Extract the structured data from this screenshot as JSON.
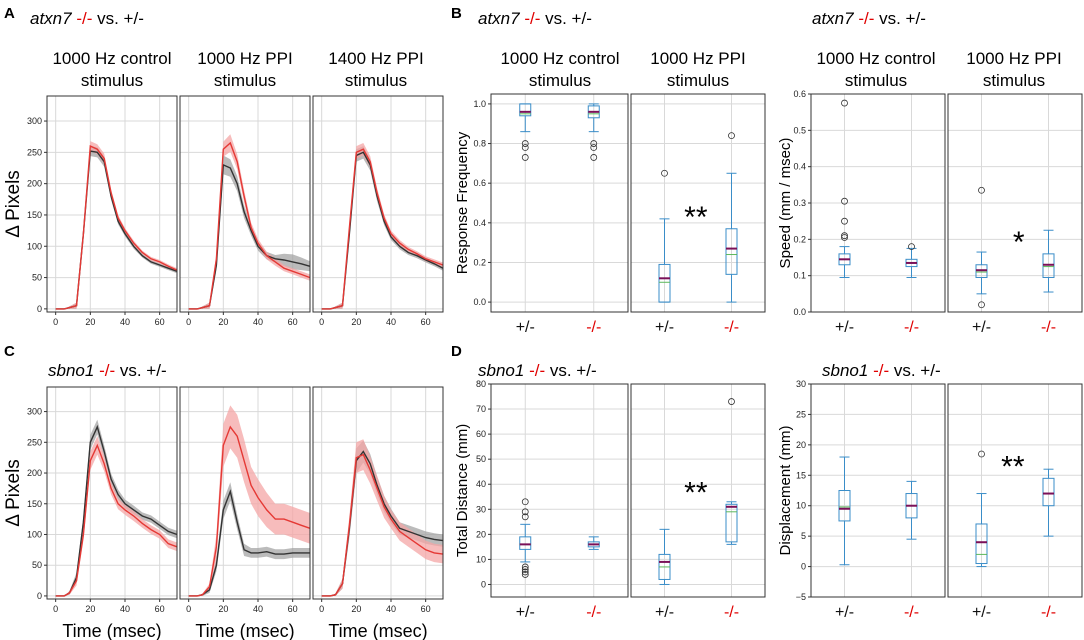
{
  "panel_labels": {
    "A": "A",
    "B": "B",
    "C": "C",
    "D": "D"
  },
  "titles": {
    "A": {
      "gene": "atxn7",
      "mut": "-/-",
      "rest": "vs. +/-"
    },
    "B1": {
      "gene": "atxn7",
      "mut": "-/-",
      "rest": "vs. +/-"
    },
    "B2": {
      "gene": "atxn7",
      "mut": "-/-",
      "rest": "vs. +/-"
    },
    "C": {
      "gene": "sbno1",
      "mut": "-/-",
      "rest": "vs. +/-"
    },
    "D1": {
      "gene": "sbno1",
      "mut": "-/-",
      "rest": "vs. +/-"
    },
    "D2": {
      "gene": "sbno1",
      "mut": "-/-",
      "rest": "vs. +/-"
    }
  },
  "col_titles": {
    "a1": [
      "1000 Hz control",
      "stimulus"
    ],
    "a2": [
      "1000 Hz PPI",
      "stimulus"
    ],
    "a3": [
      "1400 Hz PPI",
      "stimulus"
    ],
    "b1": [
      "1000 Hz control",
      "stimulus"
    ],
    "b2": [
      "1000 Hz PPI",
      "stimulus"
    ],
    "b3": [
      "1000 Hz control",
      "stimulus"
    ],
    "b4": [
      "1000 Hz PPI",
      "stimulus"
    ]
  },
  "colors": {
    "mut": "#e53935",
    "mut_band": "#f4a6a6",
    "het": "#333333",
    "het_band": "#9e9e9e",
    "box": "#3a8dc8",
    "median": "#7a1058",
    "mean": "#5cb85c",
    "label_red": "#e00000"
  },
  "chart_data": [
    {
      "id": "A",
      "type": "line",
      "xlabel": "",
      "ylabel": "Δ Pixels",
      "xlim": [
        -5,
        70
      ],
      "ylim": [
        -5,
        340
      ],
      "xticks": [
        "0",
        "20",
        "40",
        "60"
      ],
      "yticks": [
        "0",
        "50",
        "100",
        "150",
        "200",
        "250",
        "300"
      ],
      "x": [
        0,
        5,
        8,
        12,
        16,
        20,
        24,
        28,
        32,
        36,
        40,
        45,
        50,
        55,
        60,
        65,
        70
      ],
      "panels": [
        {
          "name": "1000 Hz control stimulus",
          "series": [
            {
              "name": "+/-",
              "values": [
                0,
                0,
                2,
                5,
                120,
                252,
                250,
                235,
                180,
                140,
                120,
                100,
                85,
                75,
                70,
                65,
                60
              ],
              "band": [
                0,
                0,
                2,
                5,
                5,
                8,
                8,
                8,
                6,
                5,
                4,
                4,
                3,
                3,
                3,
                3,
                3
              ]
            },
            {
              "name": "-/-",
              "values": [
                0,
                0,
                2,
                5,
                120,
                260,
                255,
                240,
                185,
                145,
                125,
                105,
                90,
                80,
                75,
                68,
                62
              ],
              "band": [
                0,
                0,
                2,
                5,
                5,
                8,
                8,
                8,
                6,
                5,
                4,
                4,
                3,
                3,
                3,
                3,
                3
              ]
            }
          ]
        },
        {
          "name": "1000 Hz PPI stimulus",
          "series": [
            {
              "name": "+/-",
              "values": [
                0,
                0,
                2,
                5,
                70,
                230,
                225,
                200,
                155,
                125,
                100,
                85,
                80,
                78,
                75,
                72,
                68
              ],
              "band": [
                0,
                0,
                2,
                5,
                8,
                15,
                14,
                12,
                10,
                8,
                7,
                6,
                6,
                10,
                12,
                10,
                8
              ]
            },
            {
              "name": "-/-",
              "values": [
                0,
                0,
                2,
                5,
                80,
                255,
                265,
                235,
                180,
                130,
                105,
                85,
                75,
                65,
                60,
                55,
                50
              ],
              "band": [
                0,
                0,
                2,
                5,
                8,
                12,
                14,
                12,
                10,
                8,
                7,
                6,
                6,
                5,
                5,
                5,
                5
              ]
            }
          ]
        },
        {
          "name": "1400 Hz PPI stimulus",
          "series": [
            {
              "name": "+/-",
              "values": [
                0,
                0,
                2,
                5,
                120,
                245,
                250,
                230,
                180,
                140,
                115,
                100,
                90,
                85,
                78,
                72,
                65
              ],
              "band": [
                0,
                0,
                2,
                5,
                8,
                10,
                10,
                9,
                8,
                6,
                5,
                5,
                4,
                4,
                4,
                4,
                4
              ]
            },
            {
              "name": "-/-",
              "values": [
                0,
                0,
                2,
                5,
                130,
                250,
                255,
                235,
                185,
                145,
                120,
                105,
                95,
                88,
                80,
                75,
                70
              ],
              "band": [
                0,
                0,
                2,
                5,
                8,
                10,
                10,
                9,
                8,
                6,
                5,
                5,
                4,
                4,
                4,
                4,
                4
              ]
            }
          ]
        }
      ]
    },
    {
      "id": "C",
      "type": "line",
      "xlabel": "Time (msec)",
      "ylabel": "Δ Pixels",
      "xlim": [
        -5,
        70
      ],
      "ylim": [
        -5,
        340
      ],
      "xticks": [
        "0",
        "20",
        "40",
        "60"
      ],
      "yticks": [
        "0",
        "50",
        "100",
        "150",
        "200",
        "250",
        "300"
      ],
      "x": [
        0,
        5,
        8,
        12,
        16,
        20,
        24,
        28,
        32,
        36,
        40,
        45,
        50,
        55,
        60,
        65,
        70
      ],
      "panels": [
        {
          "name": "1000 Hz control stimulus",
          "series": [
            {
              "name": "+/-",
              "values": [
                0,
                0,
                5,
                30,
                120,
                250,
                275,
                235,
                190,
                165,
                150,
                140,
                130,
                125,
                115,
                105,
                100
              ],
              "band": [
                0,
                0,
                3,
                8,
                10,
                12,
                12,
                10,
                9,
                8,
                7,
                7,
                6,
                6,
                6,
                6,
                6
              ]
            },
            {
              "name": "-/-",
              "values": [
                0,
                0,
                5,
                25,
                100,
                220,
                245,
                215,
                175,
                150,
                140,
                130,
                118,
                108,
                100,
                85,
                80
              ],
              "band": [
                0,
                0,
                3,
                8,
                10,
                15,
                15,
                12,
                10,
                9,
                8,
                8,
                7,
                7,
                7,
                7,
                7
              ]
            }
          ]
        },
        {
          "name": "1000 Hz PPI stimulus",
          "series": [
            {
              "name": "+/-",
              "values": [
                0,
                0,
                2,
                10,
                50,
                140,
                170,
                120,
                75,
                70,
                70,
                72,
                68,
                68,
                70,
                70,
                70
              ],
              "band": [
                0,
                0,
                2,
                5,
                10,
                15,
                15,
                12,
                10,
                8,
                8,
                8,
                8,
                8,
                8,
                8,
                8
              ]
            },
            {
              "name": "-/-",
              "values": [
                0,
                0,
                2,
                15,
                80,
                245,
                275,
                260,
                220,
                180,
                160,
                140,
                125,
                125,
                120,
                115,
                110
              ],
              "band": [
                0,
                0,
                2,
                5,
                20,
                35,
                35,
                35,
                35,
                30,
                30,
                28,
                25,
                25,
                25,
                25,
                25
              ]
            }
          ]
        },
        {
          "name": "1400 Hz PPI stimulus",
          "series": [
            {
              "name": "+/-",
              "values": [
                0,
                0,
                2,
                20,
                110,
                220,
                235,
                215,
                180,
                150,
                130,
                110,
                105,
                100,
                95,
                92,
                90
              ],
              "band": [
                0,
                0,
                2,
                8,
                15,
                20,
                18,
                16,
                15,
                13,
                12,
                10,
                10,
                10,
                10,
                10,
                10
              ]
            },
            {
              "name": "-/-",
              "values": [
                0,
                0,
                2,
                20,
                115,
                225,
                230,
                205,
                175,
                145,
                125,
                105,
                95,
                85,
                75,
                70,
                68
              ],
              "band": [
                0,
                0,
                2,
                8,
                15,
                25,
                25,
                22,
                20,
                18,
                15,
                15,
                15,
                15,
                15,
                15,
                15
              ]
            }
          ]
        }
      ]
    },
    {
      "id": "B-left",
      "type": "box",
      "ylabel": "Response Frequency",
      "ylim": [
        -0.05,
        1.05
      ],
      "yticks": [
        "0.0",
        "0.2",
        "0.4",
        "0.6",
        "0.8",
        "1.0"
      ],
      "categories": [
        "+/-",
        "-/-",
        "+/-",
        "-/-"
      ],
      "sig": "**",
      "sig_at": 3,
      "boxes": [
        {
          "q1": 0.94,
          "median": 0.96,
          "q3": 1.0,
          "wlow": 0.86,
          "whigh": 1.0,
          "mean": 0.95,
          "outliers": [
            0.8,
            0.78,
            0.73
          ]
        },
        {
          "q1": 0.93,
          "median": 0.96,
          "q3": 0.99,
          "wlow": 0.86,
          "whigh": 1.0,
          "mean": 0.95,
          "outliers": [
            0.8,
            0.78,
            0.73
          ]
        },
        {
          "q1": 0.0,
          "median": 0.12,
          "q3": 0.19,
          "wlow": 0.0,
          "whigh": 0.42,
          "mean": 0.1,
          "outliers": [
            0.65
          ]
        },
        {
          "q1": 0.14,
          "median": 0.27,
          "q3": 0.37,
          "wlow": 0.0,
          "whigh": 0.65,
          "mean": 0.24,
          "outliers": [
            0.84
          ]
        }
      ]
    },
    {
      "id": "B-right",
      "type": "box",
      "ylabel": "Speed (mm / msec)",
      "ylim": [
        0,
        0.6
      ],
      "yticks": [
        "0.0",
        "0.1",
        "0.2",
        "0.3",
        "0.4",
        "0.5",
        "0.6"
      ],
      "categories": [
        "+/-",
        "-/-",
        "+/-",
        "-/-"
      ],
      "sig": "*",
      "sig_at": 3,
      "boxes": [
        {
          "q1": 0.13,
          "median": 0.145,
          "q3": 0.16,
          "wlow": 0.095,
          "whigh": 0.18,
          "mean": 0.145,
          "outliers": [
            0.575,
            0.305,
            0.25,
            0.21,
            0.205
          ]
        },
        {
          "q1": 0.125,
          "median": 0.135,
          "q3": 0.145,
          "wlow": 0.095,
          "whigh": 0.175,
          "mean": 0.135,
          "outliers": [
            0.18
          ]
        },
        {
          "q1": 0.095,
          "median": 0.115,
          "q3": 0.13,
          "wlow": 0.05,
          "whigh": 0.165,
          "mean": 0.11,
          "outliers": [
            0.335,
            0.02
          ]
        },
        {
          "q1": 0.095,
          "median": 0.13,
          "q3": 0.16,
          "wlow": 0.055,
          "whigh": 0.225,
          "mean": 0.125,
          "outliers": []
        }
      ]
    },
    {
      "id": "D-left",
      "type": "box",
      "ylabel": "Total Distance (mm)",
      "ylim": [
        -5,
        80
      ],
      "yticks": [
        "0",
        "10",
        "20",
        "30",
        "40",
        "50",
        "60",
        "70",
        "80"
      ],
      "categories": [
        "+/-",
        "-/-",
        "+/-",
        "-/-"
      ],
      "sig": "**",
      "sig_at": 3,
      "boxes": [
        {
          "q1": 14,
          "median": 16,
          "q3": 19,
          "wlow": 9,
          "whigh": 24,
          "mean": 16,
          "outliers": [
            33,
            29,
            27,
            7,
            6,
            5,
            4
          ]
        },
        {
          "q1": 15,
          "median": 16,
          "q3": 17,
          "wlow": 14,
          "whigh": 19,
          "mean": 16,
          "outliers": []
        },
        {
          "q1": 2,
          "median": 9,
          "q3": 12,
          "wlow": 0,
          "whigh": 22,
          "mean": 7,
          "outliers": []
        },
        {
          "q1": 17,
          "median": 31,
          "q3": 32,
          "wlow": 16,
          "whigh": 33,
          "mean": 29,
          "outliers": [
            73
          ]
        }
      ]
    },
    {
      "id": "D-right",
      "type": "box",
      "ylabel": "Displacement (mm)",
      "ylim": [
        -5,
        30
      ],
      "yticks": [
        "−5",
        "0",
        "5",
        "10",
        "15",
        "20",
        "25",
        "30"
      ],
      "categories": [
        "+/-",
        "-/-",
        "+/-",
        "-/-"
      ],
      "sig": "**",
      "sig_at": 3,
      "boxes": [
        {
          "q1": 7.5,
          "median": 9.5,
          "q3": 12.5,
          "wlow": 0.3,
          "whigh": 18,
          "mean": 9.8,
          "outliers": []
        },
        {
          "q1": 8,
          "median": 10,
          "q3": 12,
          "wlow": 4.5,
          "whigh": 14,
          "mean": 10,
          "outliers": []
        },
        {
          "q1": 0.5,
          "median": 4,
          "q3": 7,
          "wlow": 0,
          "whigh": 12,
          "mean": 2,
          "outliers": [
            18.5
          ]
        },
        {
          "q1": 10,
          "median": 12,
          "q3": 14.5,
          "wlow": 5,
          "whigh": 16,
          "mean": 12,
          "outliers": []
        }
      ]
    }
  ]
}
